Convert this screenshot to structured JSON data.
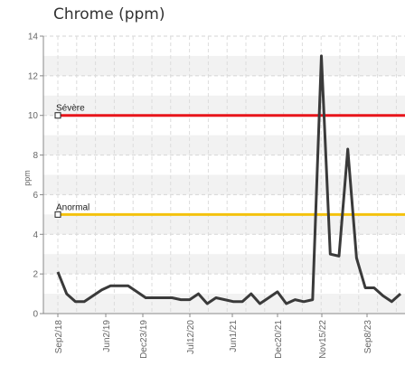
{
  "chart_data": {
    "type": "line",
    "title": "Chrome (ppm)",
    "ylabel": "ppm",
    "ylim": [
      0,
      14
    ],
    "yticks": [
      0,
      2,
      4,
      6,
      8,
      10,
      12,
      14
    ],
    "x_tick_labels": [
      "Sep2/18",
      "Jun2/19",
      "Dec23/19",
      "Jul12/20",
      "Jun1/21",
      "Dec20/21",
      "Nov15/22",
      "Sep8/23"
    ],
    "thresholds": [
      {
        "label": "Sévère",
        "value": 10,
        "color": "#e8141b"
      },
      {
        "label": "Anormal",
        "value": 5,
        "color": "#f4c20d"
      }
    ],
    "series": [
      {
        "color": "#3a3a3a",
        "values": [
          2.1,
          1.0,
          0.6,
          0.6,
          0.9,
          1.2,
          1.4,
          1.4,
          1.4,
          1.1,
          0.8,
          0.8,
          0.8,
          0.8,
          0.7,
          0.7,
          1.0,
          0.5,
          0.8,
          0.7,
          0.6,
          0.6,
          1.0,
          0.5,
          0.8,
          1.1,
          0.5,
          0.7,
          0.6,
          0.7,
          13.0,
          3.0,
          2.9,
          8.3,
          2.8,
          1.3,
          1.3,
          0.9,
          0.6,
          1.0
        ]
      }
    ],
    "grid": true
  }
}
